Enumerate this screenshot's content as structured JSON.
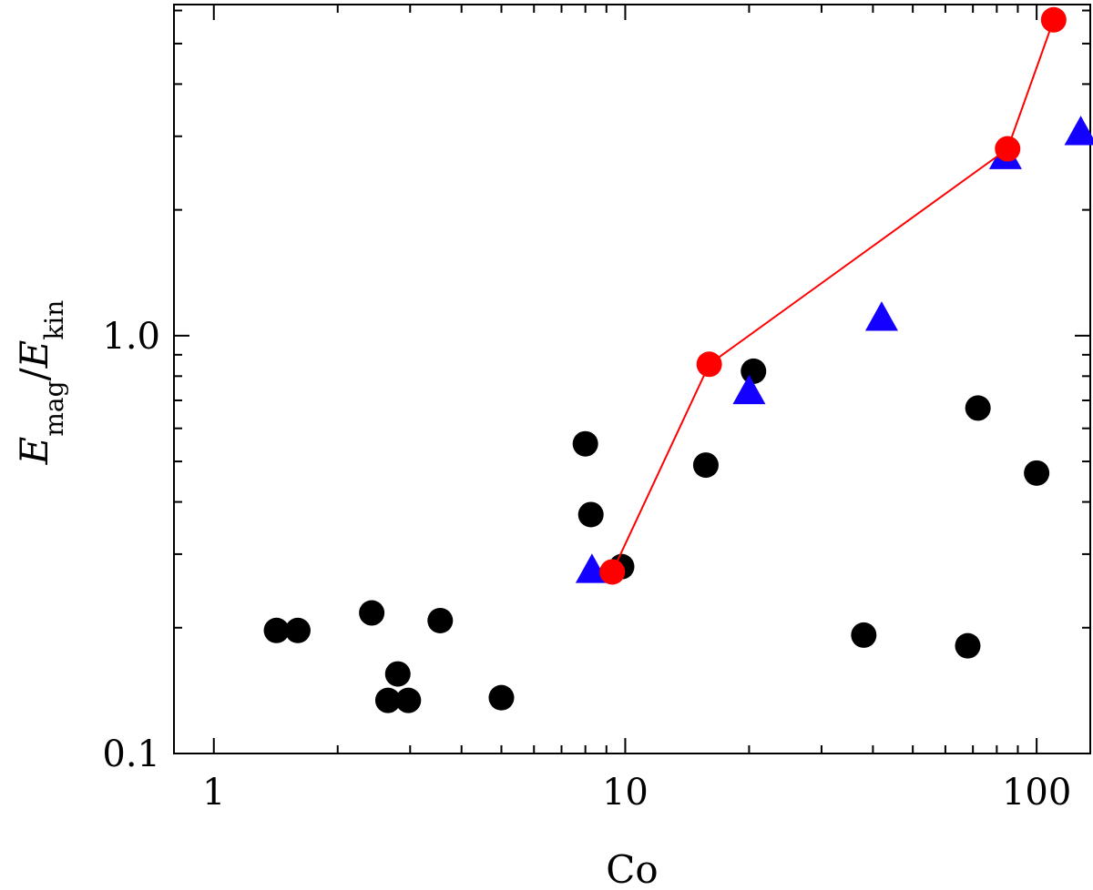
{
  "chart_data": {
    "type": "scatter",
    "title": "",
    "xlabel": "Co",
    "ylabel": {
      "base": "E",
      "sub": "mag",
      "sep": "/",
      "base2": "E",
      "sub2": "kin"
    },
    "xscale": "log",
    "yscale": "log",
    "xlim": [
      0.8,
      135
    ],
    "ylim": [
      0.1,
      6.2
    ],
    "xticks": [
      {
        "value": 1,
        "label": "1"
      },
      {
        "value": 10,
        "label": "10"
      },
      {
        "value": 100,
        "label": "100"
      }
    ],
    "yticks": [
      {
        "value": 0.1,
        "label": "0.1"
      },
      {
        "value": 1.0,
        "label": "1.0"
      }
    ],
    "grid": false,
    "legend": "none",
    "series": [
      {
        "marker": "circle",
        "color": "#000000",
        "x": [
          1.42,
          1.6,
          2.42,
          2.8,
          2.65,
          2.97,
          3.55,
          5.0,
          8.0,
          8.25,
          9.8,
          15.7,
          20.5,
          38.0,
          68.0,
          72.0,
          100.0
        ],
        "y": [
          0.197,
          0.197,
          0.217,
          0.155,
          0.134,
          0.134,
          0.208,
          0.136,
          0.551,
          0.373,
          0.28,
          0.49,
          0.822,
          0.192,
          0.181,
          0.671,
          0.469
        ]
      },
      {
        "marker": "triangle",
        "color": "#1400ff",
        "x": [
          8.3,
          20.0,
          42.0,
          84.0,
          128.0
        ],
        "y": [
          0.275,
          0.737,
          1.104,
          2.69,
          3.07
        ]
      },
      {
        "marker": "circle",
        "connected": true,
        "color": "#ff0000",
        "x": [
          9.3,
          16.0,
          85.0,
          110.0
        ],
        "y": [
          0.272,
          0.854,
          2.8,
          5.7
        ]
      }
    ]
  }
}
